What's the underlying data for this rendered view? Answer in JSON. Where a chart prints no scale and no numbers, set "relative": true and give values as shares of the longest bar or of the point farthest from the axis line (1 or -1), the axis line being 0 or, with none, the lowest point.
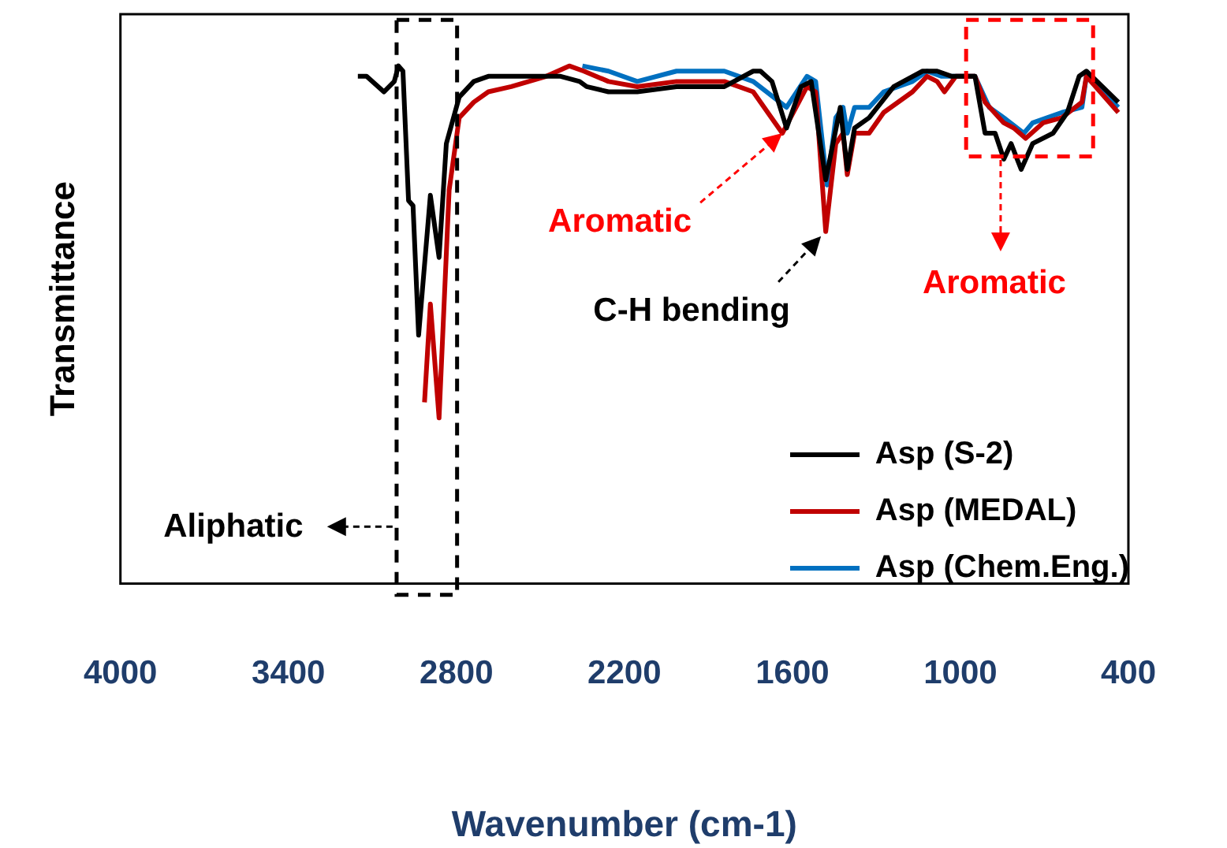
{
  "chart_data": {
    "type": "line",
    "relative": true,
    "xlabel": "Wavenumber (cm-1)",
    "ylabel": "Transmittance",
    "xlim": [
      4000,
      400
    ],
    "xticks": [
      4000,
      3400,
      2800,
      2200,
      1600,
      1000,
      400
    ],
    "legend": "bottom right",
    "grid": false,
    "marker": "none",
    "line_style": "solid",
    "annotations": [
      {
        "text": "Aromatic",
        "x": 1636,
        "y": 0.87
      },
      {
        "text": "C-H bending",
        "x": 1481,
        "y": 0.68
      },
      {
        "text": "Aromatic",
        "x": 800,
        "y": 0.8
      },
      "Aliphatic"
    ],
    "series": [
      {
        "name": "Asp (S-2)",
        "color": "#000000",
        "x": [
          3152,
          3121,
          3059,
          3022,
          3007,
          2991,
          2971,
          2955,
          2935,
          2893,
          2862,
          2836,
          2790,
          2738,
          2686,
          2604,
          2428,
          2360,
          2335,
          2257,
          2154,
          2014,
          1843,
          1740,
          1714,
          1673,
          1621,
          1569,
          1533,
          1481,
          1455,
          1429,
          1404,
          1378,
          1326,
          1238,
          1135,
          1083,
          1031,
          948,
          912,
          876,
          845,
          819,
          783,
          742,
          669,
          618,
          576,
          550,
          436
        ],
        "values": [
          0.98,
          0.98,
          0.95,
          0.97,
          1.0,
          0.99,
          0.74,
          0.73,
          0.48,
          0.75,
          0.63,
          0.85,
          0.94,
          0.97,
          0.98,
          0.98,
          0.98,
          0.97,
          0.96,
          0.95,
          0.95,
          0.96,
          0.96,
          0.99,
          0.99,
          0.97,
          0.88,
          0.96,
          0.97,
          0.78,
          0.85,
          0.92,
          0.8,
          0.88,
          0.9,
          0.96,
          0.99,
          0.99,
          0.98,
          0.98,
          0.87,
          0.87,
          0.82,
          0.85,
          0.8,
          0.85,
          0.87,
          0.91,
          0.98,
          0.99,
          0.93
        ]
      },
      {
        "name": "Asp (MEDAL)",
        "color": "#c00000",
        "x": [
          2914,
          2893,
          2862,
          2826,
          2790,
          2738,
          2686,
          2604,
          2479,
          2397,
          2345,
          2257,
          2154,
          2014,
          1843,
          1740,
          1636,
          1548,
          1517,
          1481,
          1445,
          1419,
          1404,
          1378,
          1326,
          1274,
          1171,
          1119,
          1083,
          1057,
          1016,
          948,
          912,
          845,
          809,
          767,
          705,
          638,
          566,
          550,
          436
        ],
        "values": [
          0.35,
          0.54,
          0.32,
          0.76,
          0.9,
          0.93,
          0.95,
          0.96,
          0.98,
          1.0,
          0.99,
          0.97,
          0.96,
          0.97,
          0.97,
          0.95,
          0.87,
          0.96,
          0.95,
          0.68,
          0.85,
          0.87,
          0.79,
          0.87,
          0.87,
          0.91,
          0.95,
          0.98,
          0.97,
          0.95,
          0.98,
          0.98,
          0.93,
          0.89,
          0.88,
          0.86,
          0.89,
          0.9,
          0.93,
          0.98,
          0.91
        ]
      },
      {
        "name": "Asp (Chem.Eng.)",
        "color": "#0070c0",
        "x": [
          2350,
          2257,
          2154,
          2014,
          1843,
          1740,
          1621,
          1548,
          1517,
          1476,
          1445,
          1419,
          1404,
          1378,
          1326,
          1274,
          1171,
          1119,
          1067,
          948,
          897,
          845,
          773,
          742,
          638,
          566,
          550,
          436
        ],
        "values": [
          1.0,
          0.99,
          0.97,
          0.99,
          0.99,
          0.97,
          0.92,
          0.98,
          0.97,
          0.77,
          0.9,
          0.92,
          0.87,
          0.92,
          0.92,
          0.95,
          0.97,
          0.99,
          0.98,
          0.98,
          0.92,
          0.9,
          0.87,
          0.89,
          0.91,
          0.92,
          0.98,
          0.92
        ]
      }
    ]
  }
}
